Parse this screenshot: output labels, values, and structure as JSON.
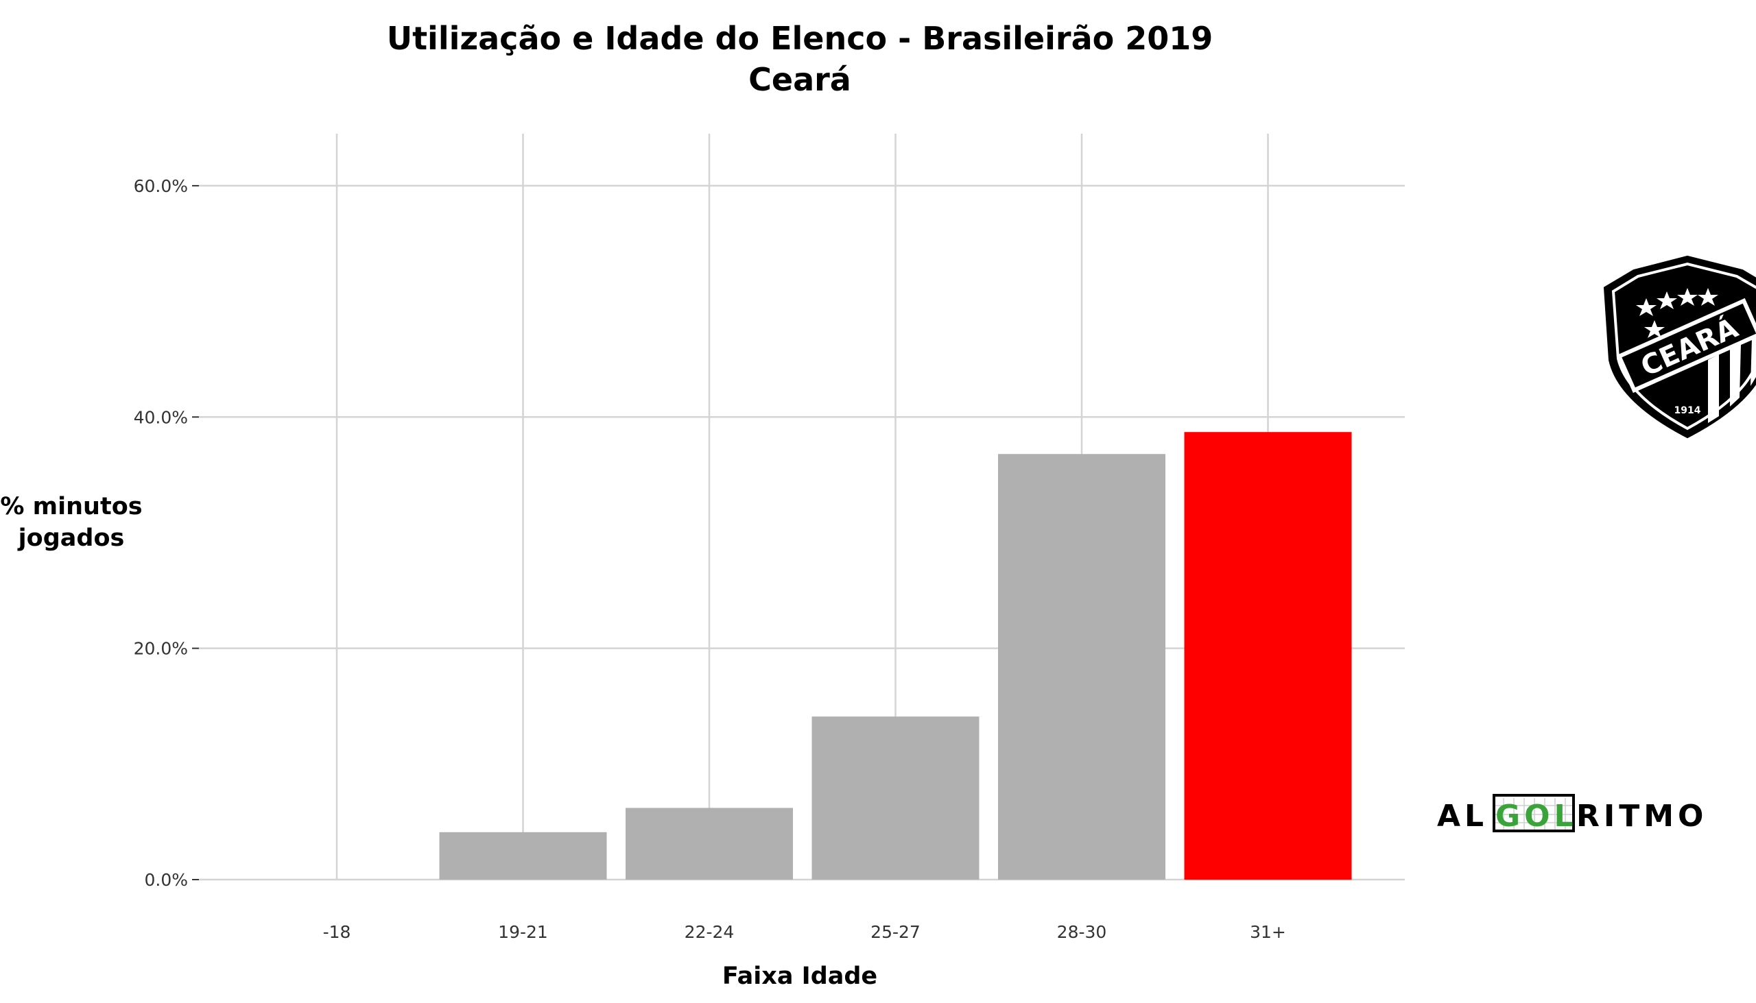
{
  "chart_data": {
    "type": "bar",
    "title": "Utilização e Idade do Elenco - Brasileirão 2019",
    "subtitle": "Ceará",
    "xlabel": "Faixa Idade",
    "ylabel_line1": "% minutos",
    "ylabel_line2": "jogados",
    "categories": [
      "-18",
      "19-21",
      "22-24",
      "25-27",
      "28-30",
      "31+"
    ],
    "values": [
      0.0,
      4.1,
      6.2,
      14.1,
      36.8,
      38.7
    ],
    "bar_colors": [
      "#b0b0b0",
      "#b0b0b0",
      "#b0b0b0",
      "#b0b0b0",
      "#b0b0b0",
      "#ff0000"
    ],
    "ylim": [
      0,
      60
    ],
    "yticks": [
      0,
      20,
      40,
      60
    ],
    "ytick_labels": [
      "0.0%",
      "20.0%",
      "40.0%",
      "60.0%"
    ],
    "grid": true,
    "legend": "none"
  },
  "crest": {
    "name": "CEARÁ",
    "year": "1914"
  },
  "watermark": {
    "part1": "AL",
    "part2": "GOL",
    "part3": "RITMO",
    "accent_color": "#3aa33a"
  }
}
